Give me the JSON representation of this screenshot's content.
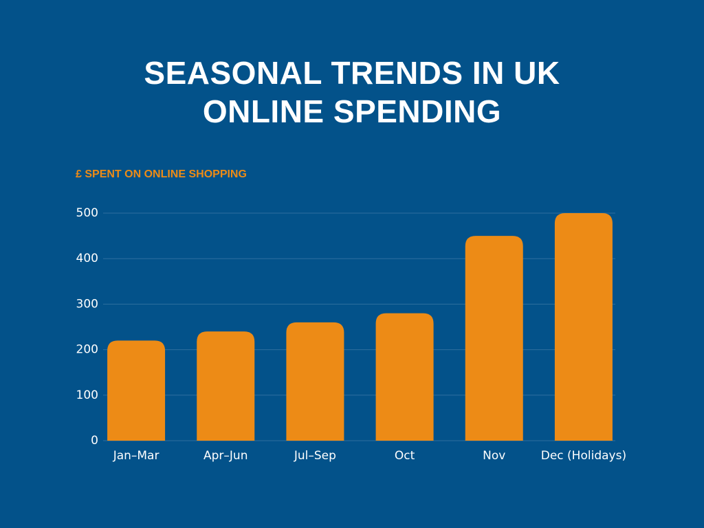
{
  "chart_data": {
    "type": "bar",
    "title": "SEASONAL TRENDS IN UK ONLINE SPENDING",
    "y_label": "£ SPENT ON ONLINE SHOPPING",
    "categories": [
      "Jan–Mar",
      "Apr–Jun",
      "Jul–Sep",
      "Oct",
      "Nov",
      "Dec (Holidays)"
    ],
    "values": [
      220,
      240,
      260,
      280,
      450,
      500
    ],
    "color": "#ed8b16",
    "ylim": [
      0,
      500
    ],
    "yticks": [
      0,
      100,
      200,
      300,
      400,
      500
    ],
    "grid": true
  }
}
